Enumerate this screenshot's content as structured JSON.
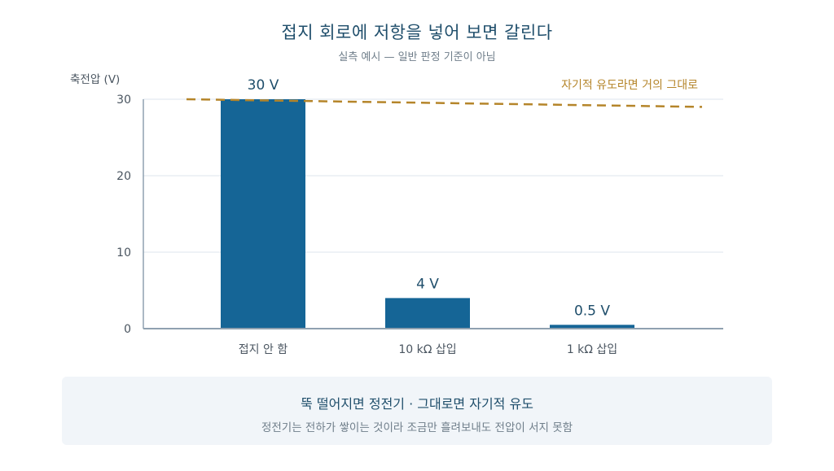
{
  "header": {
    "title": "접지 회로에 저항을 넣어 보면 갈린다",
    "subtitle": "실측 예시 — 일반 판정 기준이 아님"
  },
  "callout": {
    "title": "뚝 떨어지면 정전기 · 그대로면 자기적 유도",
    "body": "정전기는 전하가 쌓이는 것이라 조금만 흘려보내도 전압이 서지 못함"
  },
  "colors": {
    "bar": "#156596",
    "reference_line": "#b5852a",
    "axis": "#8fa1b0",
    "grid": "#dde5ec",
    "tick_text": "#4a5560",
    "value_label": "#1f4e6b"
  },
  "chart_data": {
    "type": "bar",
    "ylabel": "축전압 (V)",
    "ylim": [
      0,
      30
    ],
    "yticks": [
      0,
      10,
      20,
      30
    ],
    "grid": true,
    "categories": [
      "접지 안 함",
      "10 kΩ 삽입",
      "1 kΩ 삽입"
    ],
    "values": [
      30,
      4,
      0.5
    ],
    "value_labels": [
      "30 V",
      "4 V",
      "0.5 V"
    ],
    "reference_line": {
      "label": "자기적 유도라면 거의 그대로",
      "style": "dashed",
      "y_start": 30,
      "y_end": 29
    }
  }
}
